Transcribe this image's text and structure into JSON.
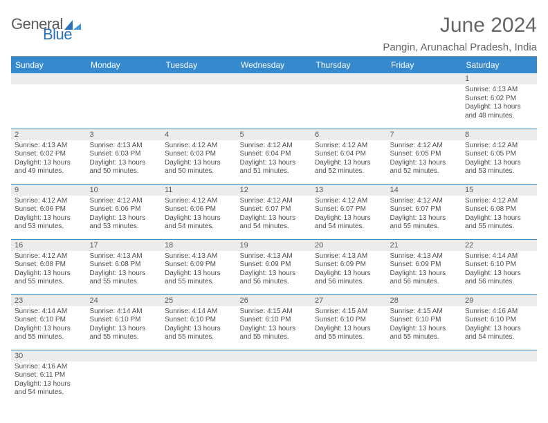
{
  "brand": {
    "word1": "General",
    "word2": "Blue",
    "color1": "#5a5a5a",
    "color2": "#2a71b8"
  },
  "title": "June 2024",
  "location": "Pangin, Arunachal Pradesh, India",
  "style": {
    "header_bg": "#3789ce",
    "header_fg": "#ffffff",
    "daynum_bg": "#ececec",
    "grid_line": "#3789ce",
    "page_bg": "#ffffff",
    "text_color": "#4c4c4c"
  },
  "weekdays": [
    "Sunday",
    "Monday",
    "Tuesday",
    "Wednesday",
    "Thursday",
    "Friday",
    "Saturday"
  ],
  "weeks": [
    [
      null,
      null,
      null,
      null,
      null,
      null,
      {
        "n": "1",
        "sr": "Sunrise: 4:13 AM",
        "ss": "Sunset: 6:02 PM",
        "d1": "Daylight: 13 hours",
        "d2": "and 48 minutes."
      }
    ],
    [
      {
        "n": "2",
        "sr": "Sunrise: 4:13 AM",
        "ss": "Sunset: 6:02 PM",
        "d1": "Daylight: 13 hours",
        "d2": "and 49 minutes."
      },
      {
        "n": "3",
        "sr": "Sunrise: 4:13 AM",
        "ss": "Sunset: 6:03 PM",
        "d1": "Daylight: 13 hours",
        "d2": "and 50 minutes."
      },
      {
        "n": "4",
        "sr": "Sunrise: 4:12 AM",
        "ss": "Sunset: 6:03 PM",
        "d1": "Daylight: 13 hours",
        "d2": "and 50 minutes."
      },
      {
        "n": "5",
        "sr": "Sunrise: 4:12 AM",
        "ss": "Sunset: 6:04 PM",
        "d1": "Daylight: 13 hours",
        "d2": "and 51 minutes."
      },
      {
        "n": "6",
        "sr": "Sunrise: 4:12 AM",
        "ss": "Sunset: 6:04 PM",
        "d1": "Daylight: 13 hours",
        "d2": "and 52 minutes."
      },
      {
        "n": "7",
        "sr": "Sunrise: 4:12 AM",
        "ss": "Sunset: 6:05 PM",
        "d1": "Daylight: 13 hours",
        "d2": "and 52 minutes."
      },
      {
        "n": "8",
        "sr": "Sunrise: 4:12 AM",
        "ss": "Sunset: 6:05 PM",
        "d1": "Daylight: 13 hours",
        "d2": "and 53 minutes."
      }
    ],
    [
      {
        "n": "9",
        "sr": "Sunrise: 4:12 AM",
        "ss": "Sunset: 6:06 PM",
        "d1": "Daylight: 13 hours",
        "d2": "and 53 minutes."
      },
      {
        "n": "10",
        "sr": "Sunrise: 4:12 AM",
        "ss": "Sunset: 6:06 PM",
        "d1": "Daylight: 13 hours",
        "d2": "and 53 minutes."
      },
      {
        "n": "11",
        "sr": "Sunrise: 4:12 AM",
        "ss": "Sunset: 6:06 PM",
        "d1": "Daylight: 13 hours",
        "d2": "and 54 minutes."
      },
      {
        "n": "12",
        "sr": "Sunrise: 4:12 AM",
        "ss": "Sunset: 6:07 PM",
        "d1": "Daylight: 13 hours",
        "d2": "and 54 minutes."
      },
      {
        "n": "13",
        "sr": "Sunrise: 4:12 AM",
        "ss": "Sunset: 6:07 PM",
        "d1": "Daylight: 13 hours",
        "d2": "and 54 minutes."
      },
      {
        "n": "14",
        "sr": "Sunrise: 4:12 AM",
        "ss": "Sunset: 6:07 PM",
        "d1": "Daylight: 13 hours",
        "d2": "and 55 minutes."
      },
      {
        "n": "15",
        "sr": "Sunrise: 4:12 AM",
        "ss": "Sunset: 6:08 PM",
        "d1": "Daylight: 13 hours",
        "d2": "and 55 minutes."
      }
    ],
    [
      {
        "n": "16",
        "sr": "Sunrise: 4:12 AM",
        "ss": "Sunset: 6:08 PM",
        "d1": "Daylight: 13 hours",
        "d2": "and 55 minutes."
      },
      {
        "n": "17",
        "sr": "Sunrise: 4:13 AM",
        "ss": "Sunset: 6:08 PM",
        "d1": "Daylight: 13 hours",
        "d2": "and 55 minutes."
      },
      {
        "n": "18",
        "sr": "Sunrise: 4:13 AM",
        "ss": "Sunset: 6:09 PM",
        "d1": "Daylight: 13 hours",
        "d2": "and 55 minutes."
      },
      {
        "n": "19",
        "sr": "Sunrise: 4:13 AM",
        "ss": "Sunset: 6:09 PM",
        "d1": "Daylight: 13 hours",
        "d2": "and 56 minutes."
      },
      {
        "n": "20",
        "sr": "Sunrise: 4:13 AM",
        "ss": "Sunset: 6:09 PM",
        "d1": "Daylight: 13 hours",
        "d2": "and 56 minutes."
      },
      {
        "n": "21",
        "sr": "Sunrise: 4:13 AM",
        "ss": "Sunset: 6:09 PM",
        "d1": "Daylight: 13 hours",
        "d2": "and 56 minutes."
      },
      {
        "n": "22",
        "sr": "Sunrise: 4:14 AM",
        "ss": "Sunset: 6:10 PM",
        "d1": "Daylight: 13 hours",
        "d2": "and 56 minutes."
      }
    ],
    [
      {
        "n": "23",
        "sr": "Sunrise: 4:14 AM",
        "ss": "Sunset: 6:10 PM",
        "d1": "Daylight: 13 hours",
        "d2": "and 55 minutes."
      },
      {
        "n": "24",
        "sr": "Sunrise: 4:14 AM",
        "ss": "Sunset: 6:10 PM",
        "d1": "Daylight: 13 hours",
        "d2": "and 55 minutes."
      },
      {
        "n": "25",
        "sr": "Sunrise: 4:14 AM",
        "ss": "Sunset: 6:10 PM",
        "d1": "Daylight: 13 hours",
        "d2": "and 55 minutes."
      },
      {
        "n": "26",
        "sr": "Sunrise: 4:15 AM",
        "ss": "Sunset: 6:10 PM",
        "d1": "Daylight: 13 hours",
        "d2": "and 55 minutes."
      },
      {
        "n": "27",
        "sr": "Sunrise: 4:15 AM",
        "ss": "Sunset: 6:10 PM",
        "d1": "Daylight: 13 hours",
        "d2": "and 55 minutes."
      },
      {
        "n": "28",
        "sr": "Sunrise: 4:15 AM",
        "ss": "Sunset: 6:10 PM",
        "d1": "Daylight: 13 hours",
        "d2": "and 55 minutes."
      },
      {
        "n": "29",
        "sr": "Sunrise: 4:16 AM",
        "ss": "Sunset: 6:10 PM",
        "d1": "Daylight: 13 hours",
        "d2": "and 54 minutes."
      }
    ],
    [
      {
        "n": "30",
        "sr": "Sunrise: 4:16 AM",
        "ss": "Sunset: 6:11 PM",
        "d1": "Daylight: 13 hours",
        "d2": "and 54 minutes."
      },
      null,
      null,
      null,
      null,
      null,
      null
    ]
  ]
}
